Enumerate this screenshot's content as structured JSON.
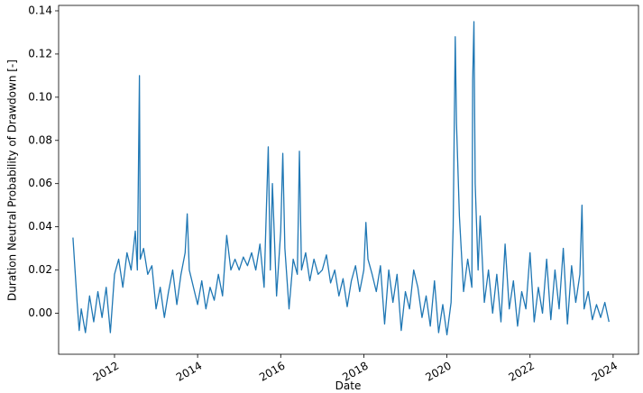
{
  "chart_data": {
    "type": "line",
    "xlabel": "Date",
    "ylabel": "Duration Neutral Probability of Drawdown [-]",
    "x": [
      2011.0,
      2011.05,
      2011.1,
      2011.15,
      2011.2,
      2011.3,
      2011.4,
      2011.5,
      2011.6,
      2011.7,
      2011.8,
      2011.9,
      2012.0,
      2012.1,
      2012.2,
      2012.3,
      2012.4,
      2012.5,
      2012.55,
      2012.6,
      2012.62,
      2012.7,
      2012.8,
      2012.9,
      2013.0,
      2013.1,
      2013.2,
      2013.3,
      2013.4,
      2013.5,
      2013.6,
      2013.7,
      2013.75,
      2013.8,
      2013.9,
      2014.0,
      2014.1,
      2014.2,
      2014.3,
      2014.4,
      2014.5,
      2014.6,
      2014.7,
      2014.8,
      2014.9,
      2015.0,
      2015.1,
      2015.2,
      2015.3,
      2015.4,
      2015.5,
      2015.6,
      2015.65,
      2015.7,
      2015.75,
      2015.8,
      2015.9,
      2016.0,
      2016.05,
      2016.1,
      2016.2,
      2016.3,
      2016.4,
      2016.45,
      2016.5,
      2016.6,
      2016.7,
      2016.8,
      2016.9,
      2017.0,
      2017.1,
      2017.2,
      2017.3,
      2017.4,
      2017.5,
      2017.6,
      2017.7,
      2017.8,
      2017.9,
      2018.0,
      2018.05,
      2018.1,
      2018.2,
      2018.3,
      2018.4,
      2018.5,
      2018.6,
      2018.7,
      2018.8,
      2018.9,
      2019.0,
      2019.1,
      2019.2,
      2019.3,
      2019.4,
      2019.5,
      2019.6,
      2019.7,
      2019.8,
      2019.9,
      2020.0,
      2020.1,
      2020.15,
      2020.2,
      2020.23,
      2020.3,
      2020.4,
      2020.5,
      2020.6,
      2020.62,
      2020.65,
      2020.68,
      2020.75,
      2020.8,
      2020.9,
      2021.0,
      2021.1,
      2021.2,
      2021.3,
      2021.4,
      2021.5,
      2021.6,
      2021.7,
      2021.8,
      2021.9,
      2022.0,
      2022.1,
      2022.2,
      2022.3,
      2022.4,
      2022.5,
      2022.6,
      2022.7,
      2022.8,
      2022.9,
      2023.0,
      2023.1,
      2023.2,
      2023.25,
      2023.3,
      2023.4,
      2023.5,
      2023.6,
      2023.7,
      2023.8,
      2023.9
    ],
    "series": [
      {
        "name": "Duration Neutral Probability of Drawdown",
        "color": "#1f77b4",
        "values": [
          0.035,
          0.02,
          0.005,
          -0.008,
          0.002,
          -0.009,
          0.008,
          -0.004,
          0.01,
          -0.002,
          0.012,
          -0.009,
          0.018,
          0.025,
          0.012,
          0.028,
          0.02,
          0.038,
          0.02,
          0.11,
          0.025,
          0.03,
          0.018,
          0.022,
          0.002,
          0.012,
          -0.002,
          0.01,
          0.02,
          0.004,
          0.018,
          0.028,
          0.046,
          0.02,
          0.012,
          0.004,
          0.015,
          0.002,
          0.012,
          0.006,
          0.018,
          0.008,
          0.036,
          0.02,
          0.025,
          0.02,
          0.026,
          0.022,
          0.028,
          0.02,
          0.032,
          0.012,
          0.045,
          0.077,
          0.02,
          0.06,
          0.008,
          0.038,
          0.074,
          0.03,
          0.002,
          0.025,
          0.018,
          0.075,
          0.02,
          0.028,
          0.015,
          0.025,
          0.018,
          0.02,
          0.027,
          0.014,
          0.02,
          0.008,
          0.016,
          0.003,
          0.015,
          0.022,
          0.01,
          0.02,
          0.042,
          0.025,
          0.018,
          0.01,
          0.022,
          -0.005,
          0.02,
          0.005,
          0.018,
          -0.008,
          0.01,
          0.002,
          0.02,
          0.012,
          -0.002,
          0.008,
          -0.006,
          0.015,
          -0.009,
          0.004,
          -0.01,
          0.005,
          0.04,
          0.128,
          0.088,
          0.045,
          0.01,
          0.025,
          0.012,
          0.108,
          0.135,
          0.06,
          0.02,
          0.045,
          0.005,
          0.02,
          0.0,
          0.018,
          -0.004,
          0.032,
          0.002,
          0.015,
          -0.006,
          0.01,
          0.002,
          0.028,
          -0.004,
          0.012,
          0.0,
          0.025,
          -0.003,
          0.02,
          0.002,
          0.03,
          -0.005,
          0.022,
          0.005,
          0.018,
          0.05,
          0.002,
          0.01,
          -0.003,
          0.004,
          -0.002,
          0.005,
          -0.004
        ]
      }
    ],
    "xlim": [
      2010.655,
      2024.61
    ],
    "xticks": [
      2012,
      2014,
      2016,
      2018,
      2020,
      2022,
      2024
    ],
    "ylim": [
      -0.019,
      0.1425
    ],
    "yticks": [
      {
        "value": 0,
        "label": "0.00"
      },
      {
        "value": 0.02,
        "label": "0.02"
      },
      {
        "value": 0.04,
        "label": "0.04"
      },
      {
        "value": 0.06,
        "label": "0.06"
      },
      {
        "value": 0.08,
        "label": "0.08"
      },
      {
        "value": 0.1,
        "label": "0.10"
      },
      {
        "value": 0.12,
        "label": "0.12"
      },
      {
        "value": 0.14,
        "label": "0.14"
      }
    ],
    "grid": false
  }
}
